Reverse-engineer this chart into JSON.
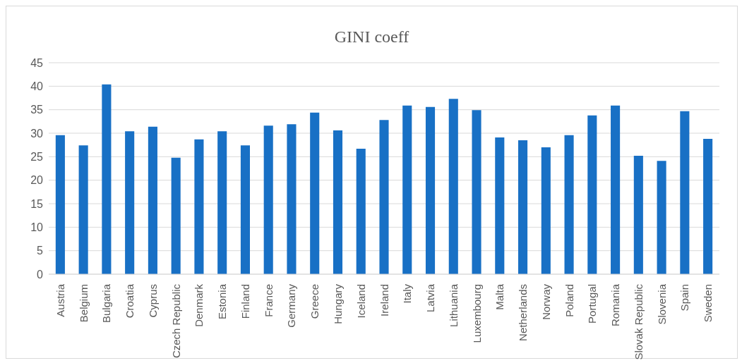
{
  "chart_data": {
    "type": "bar",
    "title": "GINI coeff",
    "categories": [
      "Austria",
      "Belgium",
      "Bulgaria",
      "Croatia",
      "Cyprus",
      "Czech Republic",
      "Denmark",
      "Estonia",
      "Finland",
      "France",
      "Germany",
      "Greece",
      "Hungary",
      "Iceland",
      "Ireland",
      "Italy",
      "Latvia",
      "Lithuania",
      "Luxembourg",
      "Malta",
      "Netherlands",
      "Norway",
      "Poland",
      "Portugal",
      "Romania",
      "Slovak Republic",
      "Slovenia",
      "Spain",
      "Sweden"
    ],
    "values": [
      29.6,
      27.4,
      40.4,
      30.4,
      31.4,
      24.8,
      28.7,
      30.4,
      27.4,
      31.6,
      31.9,
      34.4,
      30.6,
      26.7,
      32.8,
      35.9,
      35.6,
      37.3,
      34.9,
      29.1,
      28.5,
      27.0,
      29.6,
      33.8,
      35.9,
      25.2,
      24.1,
      34.7,
      28.8
    ],
    "color": "#1870c5",
    "ylim": [
      0,
      45
    ],
    "yticks": [
      0,
      5,
      10,
      15,
      20,
      25,
      30,
      35,
      40,
      45
    ],
    "grid": "y",
    "legend": false
  }
}
